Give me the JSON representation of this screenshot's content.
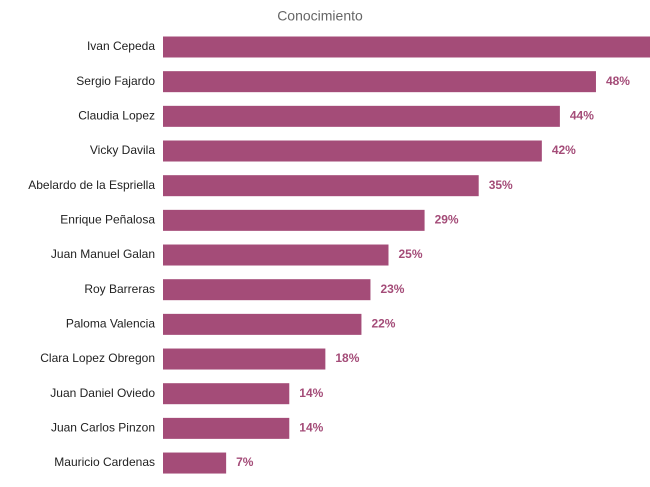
{
  "chart_data": {
    "type": "bar",
    "orientation": "horizontal",
    "title": "Conocimiento",
    "categories": [
      "Ivan Cepeda",
      "Sergio Fajardo",
      "Claudia Lopez",
      "Vicky Davila",
      "Abelardo de la Espriella",
      "Enrique Peñalosa",
      "Juan Manuel Galan",
      "Roy Barreras",
      "Paloma Valencia",
      "Clara Lopez Obregon",
      "Juan Daniel Oviedo",
      "Juan Carlos Pinzon",
      "Mauricio Cardenas"
    ],
    "values": [
      54,
      48,
      44,
      42,
      35,
      29,
      25,
      23,
      22,
      18,
      14,
      14,
      7
    ],
    "value_labels": [
      null,
      "48%",
      "44%",
      "42%",
      "35%",
      "29%",
      "25%",
      "23%",
      "22%",
      "18%",
      "14%",
      "14%",
      "7%"
    ],
    "color": "#a44c78"
  }
}
